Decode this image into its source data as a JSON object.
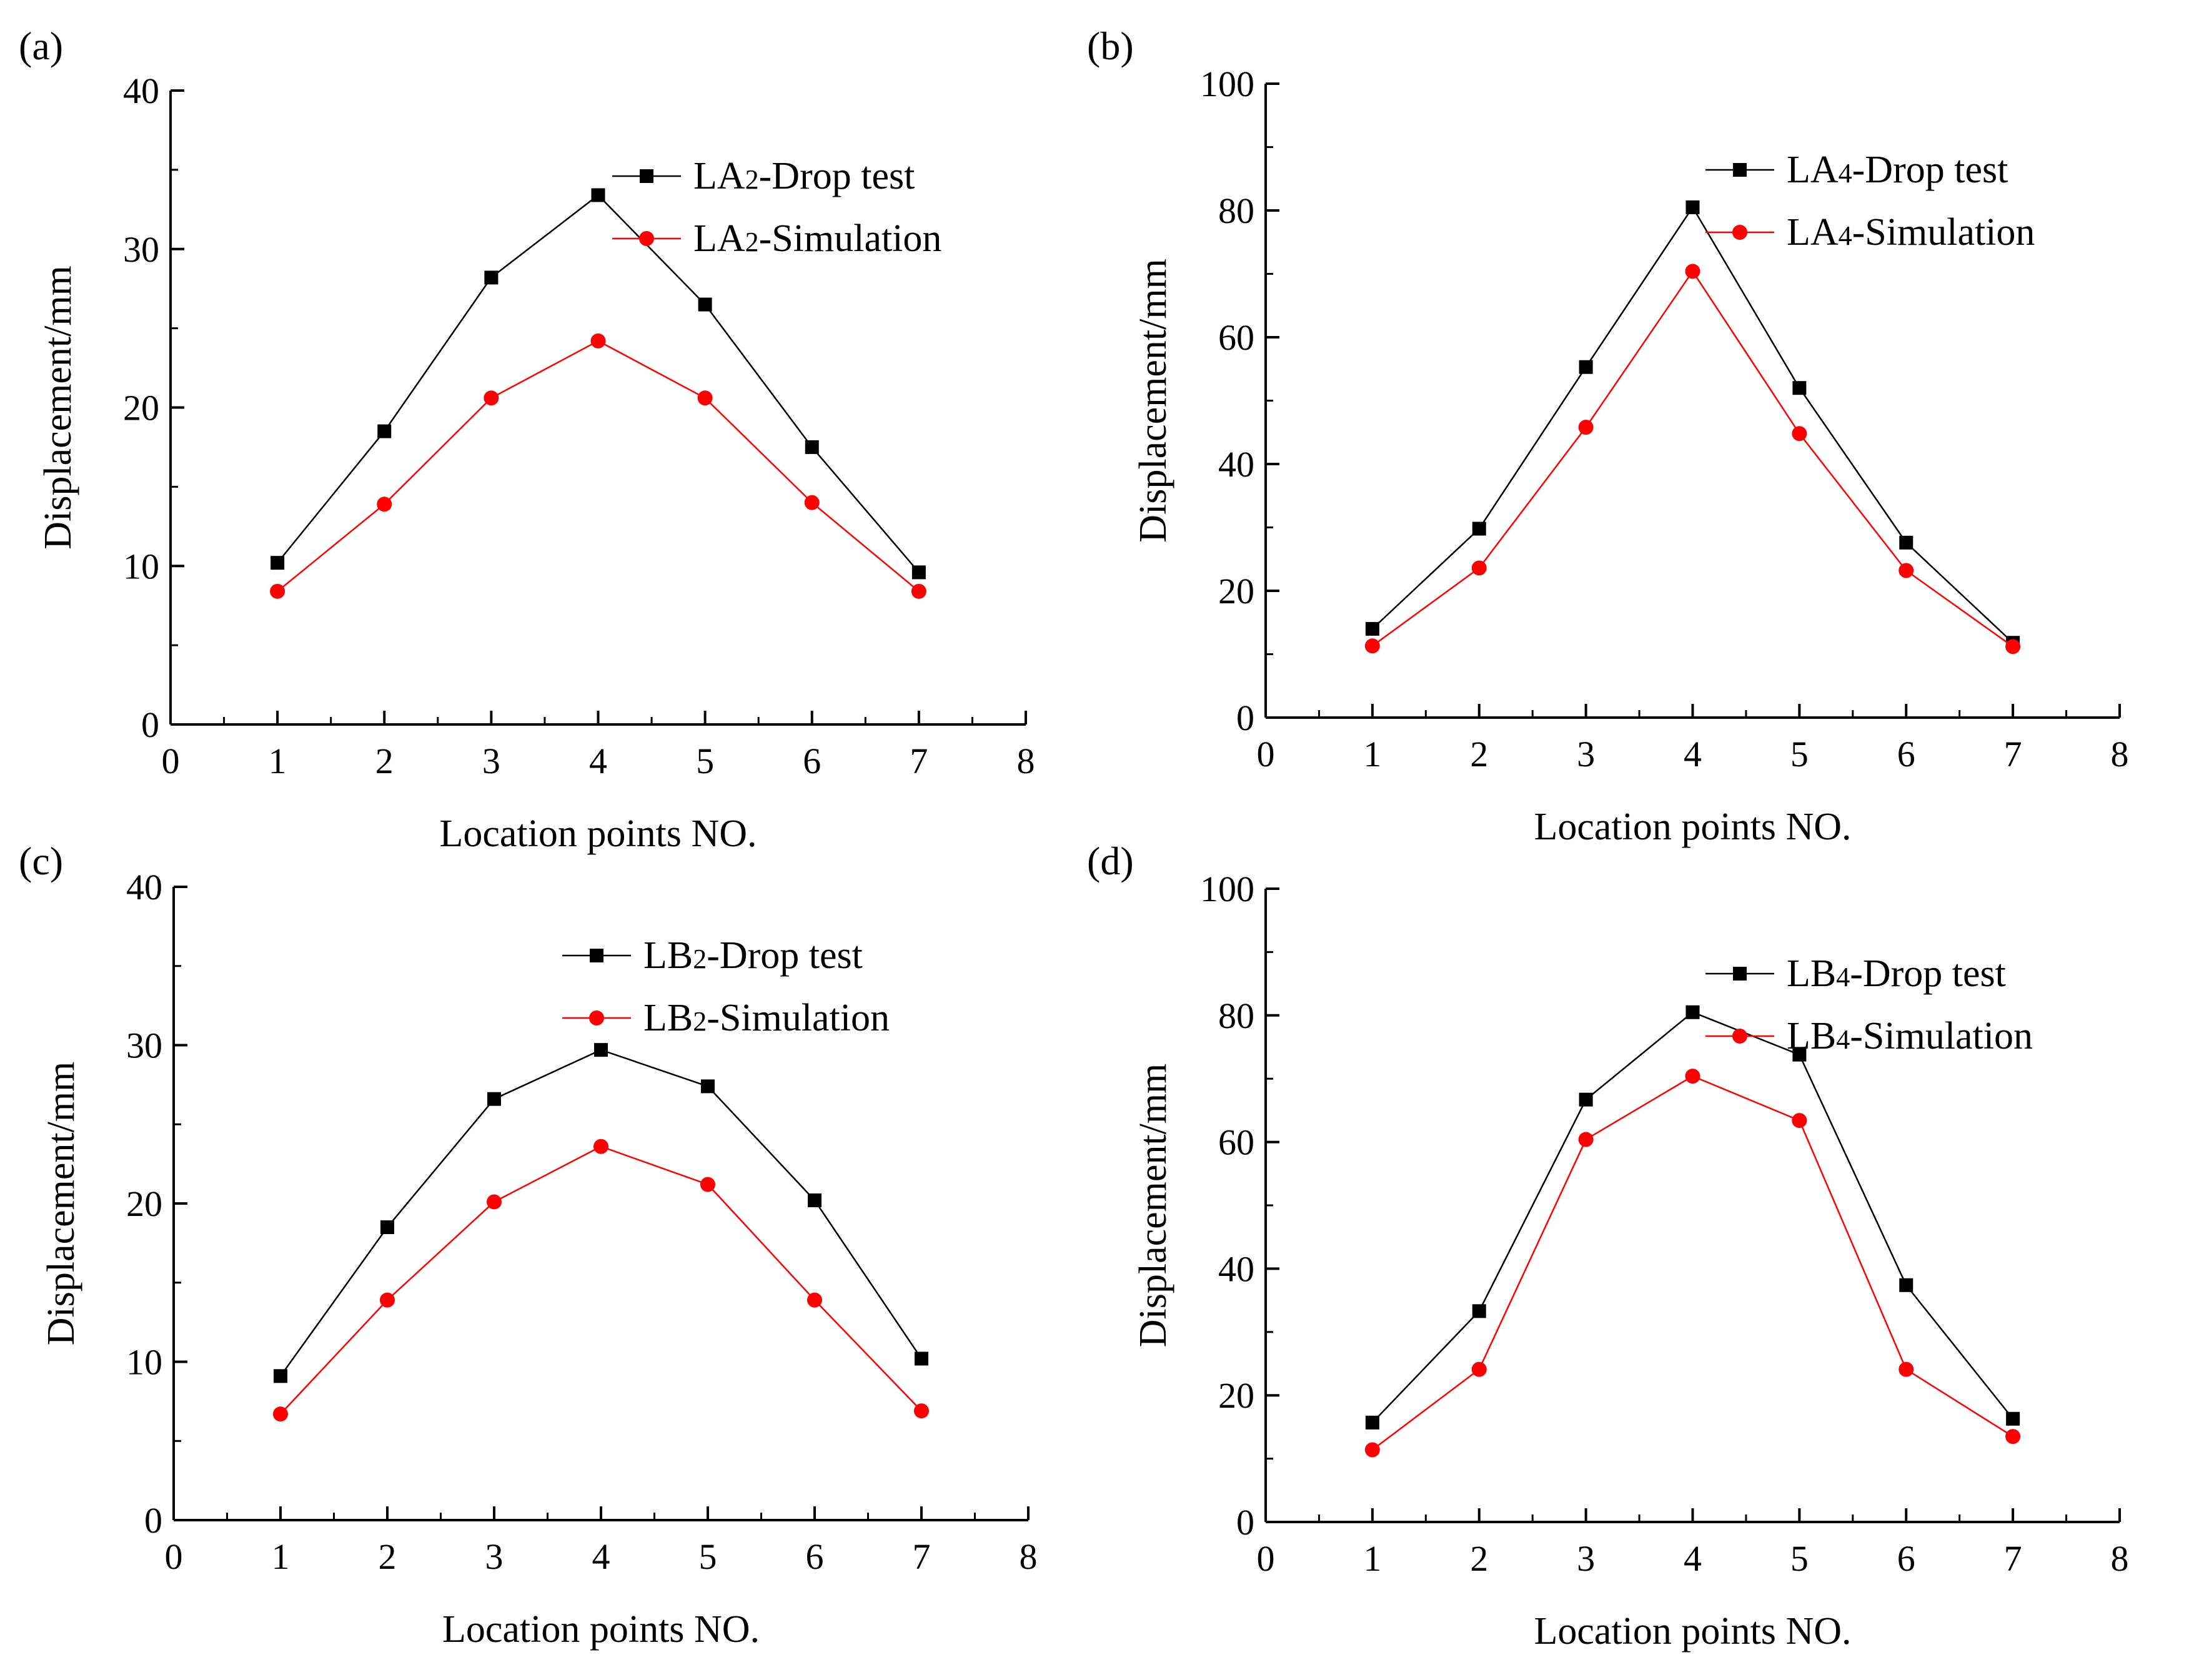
{
  "chart_data": [
    {
      "type": "line",
      "panel_label": "(a)",
      "xlabel": "Location points NO.",
      "ylabel": "Displacement/mm",
      "xlim": [
        0,
        8
      ],
      "ylim": [
        0,
        40
      ],
      "xticks": [
        "0",
        "1",
        "2",
        "3",
        "4",
        "5",
        "6",
        "7",
        "8"
      ],
      "yticks": [
        "0",
        "10",
        "20",
        "30",
        "40"
      ],
      "x": [
        1,
        2,
        3,
        4,
        5,
        6,
        7
      ],
      "series": [
        {
          "name": "LA2-Drop test",
          "legend_main": "LA",
          "legend_sub": "2",
          "legend_rest": "-Drop test",
          "marker": "square",
          "color": "#000000",
          "values": [
            10.2,
            18.5,
            28.2,
            33.4,
            26.5,
            17.5,
            9.6
          ]
        },
        {
          "name": "LA2-Simulation",
          "legend_main": "LA",
          "legend_sub": "2",
          "legend_rest": "-Simulation",
          "marker": "circle",
          "color": "#ff0000",
          "values": [
            8.4,
            13.9,
            20.6,
            24.2,
            20.6,
            14.0,
            8.4
          ]
        }
      ]
    },
    {
      "type": "line",
      "panel_label": "(b)",
      "xlabel": "Location points NO.",
      "ylabel": "Displacement/mm",
      "xlim": [
        0,
        8
      ],
      "ylim": [
        0,
        100
      ],
      "xticks": [
        "0",
        "1",
        "2",
        "3",
        "4",
        "5",
        "6",
        "7",
        "8"
      ],
      "yticks": [
        "0",
        "20",
        "40",
        "60",
        "80",
        "100"
      ],
      "x": [
        1,
        2,
        3,
        4,
        5,
        6,
        7
      ],
      "series": [
        {
          "name": "LA4-Drop test",
          "legend_main": "LA",
          "legend_sub": "4",
          "legend_rest": "-Drop test",
          "marker": "square",
          "color": "#000000",
          "values": [
            14.0,
            29.8,
            55.3,
            80.5,
            52.0,
            27.6,
            11.8
          ]
        },
        {
          "name": "LA4-Simulation",
          "legend_main": "LA",
          "legend_sub": "4",
          "legend_rest": "-Simulation",
          "marker": "circle",
          "color": "#ff0000",
          "values": [
            11.3,
            23.6,
            45.8,
            70.4,
            44.8,
            23.2,
            11.2
          ]
        }
      ]
    },
    {
      "type": "line",
      "panel_label": "(c)",
      "xlabel": "Location points NO.",
      "ylabel": "Displacement/mm",
      "xlim": [
        0,
        8
      ],
      "ylim": [
        0,
        40
      ],
      "xticks": [
        "0",
        "1",
        "2",
        "3",
        "4",
        "5",
        "6",
        "7",
        "8"
      ],
      "yticks": [
        "0",
        "10",
        "20",
        "30",
        "40"
      ],
      "x": [
        1,
        2,
        3,
        4,
        5,
        6,
        7
      ],
      "series": [
        {
          "name": "LB2-Drop test",
          "legend_main": "LB",
          "legend_sub": "2",
          "legend_rest": "-Drop test",
          "marker": "square",
          "color": "#000000",
          "values": [
            9.1,
            18.5,
            26.6,
            29.7,
            27.4,
            20.2,
            10.2
          ]
        },
        {
          "name": "LB2-Simulation",
          "legend_main": "LB",
          "legend_sub": "2",
          "legend_rest": "-Simulation",
          "marker": "circle",
          "color": "#ff0000",
          "values": [
            6.7,
            13.9,
            20.1,
            23.6,
            21.2,
            13.9,
            6.9
          ]
        }
      ]
    },
    {
      "type": "line",
      "panel_label": "(d)",
      "xlabel": "Location points NO.",
      "ylabel": "Displacement/mm",
      "xlim": [
        0,
        8
      ],
      "ylim": [
        0,
        100
      ],
      "xticks": [
        "0",
        "1",
        "2",
        "3",
        "4",
        "5",
        "6",
        "7",
        "8"
      ],
      "yticks": [
        "0",
        "20",
        "40",
        "60",
        "80",
        "100"
      ],
      "x": [
        1,
        2,
        3,
        4,
        5,
        6,
        7
      ],
      "series": [
        {
          "name": "LB4-Drop test",
          "legend_main": "LB",
          "legend_sub": "4",
          "legend_rest": "-Drop test",
          "marker": "square",
          "color": "#000000",
          "values": [
            15.7,
            33.3,
            66.7,
            80.5,
            73.8,
            37.4,
            16.3
          ]
        },
        {
          "name": "LB4-Simulation",
          "legend_main": "LB",
          "legend_sub": "4",
          "legend_rest": "-Simulation",
          "marker": "circle",
          "color": "#ff0000",
          "values": [
            11.4,
            24.1,
            60.4,
            70.4,
            63.4,
            24.1,
            13.5
          ]
        }
      ]
    }
  ]
}
